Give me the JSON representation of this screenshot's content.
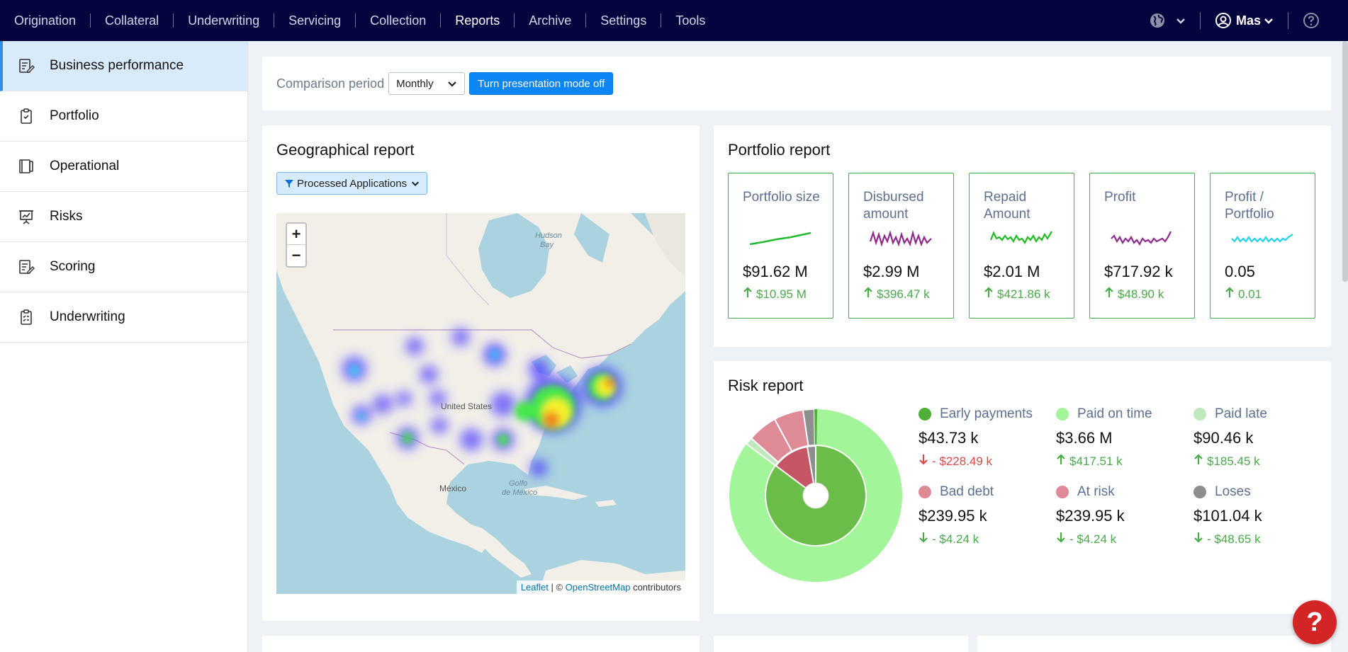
{
  "nav": {
    "items": [
      "Origination",
      "Collateral",
      "Underwriting",
      "Servicing",
      "Collection",
      "Reports",
      "Archive",
      "Settings",
      "Tools"
    ],
    "active": "Reports",
    "user": "Mas"
  },
  "sidebar": {
    "items": [
      {
        "label": "Business performance",
        "icon": "report-edit-icon"
      },
      {
        "label": "Portfolio",
        "icon": "clipboard-icon"
      },
      {
        "label": "Operational",
        "icon": "notebook-icon"
      },
      {
        "label": "Risks",
        "icon": "presentation-chart-icon"
      },
      {
        "label": "Scoring",
        "icon": "scoring-edit-icon"
      },
      {
        "label": "Underwriting",
        "icon": "checklist-icon"
      }
    ],
    "active_index": 0
  },
  "filter": {
    "label": "Comparison period",
    "period": "Monthly",
    "presentation_button": "Turn presentation mode off"
  },
  "geo": {
    "title": "Geographical report",
    "filter_label": "Processed Applications",
    "map_labels": {
      "hudson": "Hudson",
      "bay": "Bay",
      "us": "United States",
      "mexico": "México",
      "golfo": "Golfo",
      "de_mexico": "de México"
    },
    "attribution": {
      "leaflet": "Leaflet",
      "sep": " | © ",
      "osm": "OpenStreetMap",
      "contrib": " contributors"
    },
    "zoom_in": "+",
    "zoom_out": "−"
  },
  "portfolio": {
    "title": "Portfolio report",
    "kpis": [
      {
        "title": "Portfolio size",
        "value": "$91.62 M",
        "delta": "$10.95 M",
        "color": "#22bb33"
      },
      {
        "title": "Disbursed amount",
        "value": "$2.99 M",
        "delta": "$396.47 k",
        "color": "#8e2a8e"
      },
      {
        "title": "Repaid Amount",
        "value": "$2.01 M",
        "delta": "$421.86 k",
        "color": "#22bb22"
      },
      {
        "title": "Profit",
        "value": "$717.92 k",
        "delta": "$48.90 k",
        "color": "#8e2a8e"
      },
      {
        "title": "Profit / Portfolio",
        "value": "0.05",
        "delta": "0.01",
        "color": "#22d3ee"
      }
    ]
  },
  "risk": {
    "title": "Risk report",
    "items": [
      {
        "label": "Early payments",
        "value": "$43.73 k",
        "delta": "- $228.49 k",
        "dir": "down",
        "delta_color": "red",
        "color": "#4caf36"
      },
      {
        "label": "Paid on time",
        "value": "$3.66 M",
        "delta": "$417.51 k",
        "dir": "up",
        "delta_color": "green",
        "color": "#a3f59a"
      },
      {
        "label": "Paid late",
        "value": "$90.46 k",
        "delta": "$185.45 k",
        "dir": "up",
        "delta_color": "green",
        "color": "#bfe9bd"
      },
      {
        "label": "Bad debt",
        "value": "$239.95 k",
        "delta": "- $4.24 k",
        "dir": "down",
        "delta_color": "green",
        "color": "#de8a97"
      },
      {
        "label": "At risk",
        "value": "$239.95 k",
        "delta": "- $4.24 k",
        "dir": "down",
        "delta_color": "green",
        "color": "#de8a97"
      },
      {
        "label": "Loses",
        "value": "$101.04 k",
        "delta": "- $48.65 k",
        "dir": "down",
        "delta_color": "green",
        "color": "#8e8e8e"
      }
    ]
  },
  "help": "?"
}
